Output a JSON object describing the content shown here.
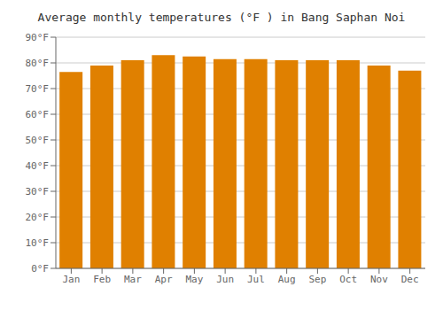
{
  "chart_data": {
    "type": "bar",
    "title": "Average monthly temperatures (°F ) in Bang Saphan Noi",
    "categories": [
      "Jan",
      "Feb",
      "Mar",
      "Apr",
      "May",
      "Jun",
      "Jul",
      "Aug",
      "Sep",
      "Oct",
      "Nov",
      "Dec"
    ],
    "values": [
      76.5,
      79.0,
      81.0,
      83.0,
      82.5,
      81.5,
      81.5,
      81.0,
      81.0,
      81.0,
      79.0,
      77.0
    ],
    "color": "#E08000",
    "ylim": [
      0,
      90
    ],
    "yticks": [
      {
        "value": 0,
        "label": "0°F"
      },
      {
        "value": 10,
        "label": "10°F"
      },
      {
        "value": 20,
        "label": "20°F"
      },
      {
        "value": 30,
        "label": "30°F"
      },
      {
        "value": 40,
        "label": "40°F"
      },
      {
        "value": 50,
        "label": "50°F"
      },
      {
        "value": 60,
        "label": "60°F"
      },
      {
        "value": 70,
        "label": "70°F"
      },
      {
        "value": 80,
        "label": "80°F"
      },
      {
        "value": 90,
        "label": "90°F"
      }
    ],
    "grid": true
  }
}
